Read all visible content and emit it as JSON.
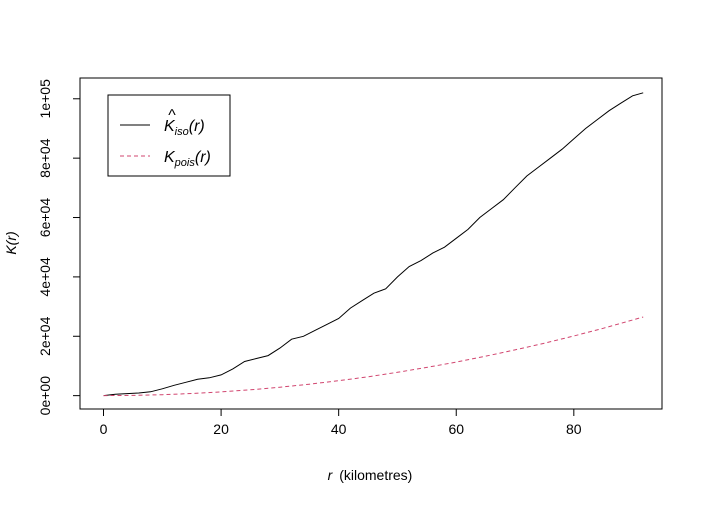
{
  "chart_data": {
    "type": "line",
    "xlabel_var": "r",
    "xlabel_unit": "(kilometres)",
    "ylabel": "K(r)",
    "xlim": [
      -4,
      95
    ],
    "ylim": [
      -4500,
      107000
    ],
    "x_ticks": [
      0,
      20,
      40,
      60,
      80
    ],
    "x_tick_labels": [
      "0",
      "20",
      "40",
      "60",
      "80"
    ],
    "y_ticks": [
      0,
      20000,
      40000,
      60000,
      80000,
      100000
    ],
    "y_tick_labels": [
      "0e+00",
      "2e+04",
      "4e+04",
      "6e+04",
      "8e+04",
      "1e+05"
    ],
    "grid": false,
    "legend_position": "top-left",
    "series": [
      {
        "name": "K̂iso(r)",
        "legend_main": "K",
        "legend_hat": "^",
        "legend_sub": "iso",
        "legend_arg": "(r)",
        "color": "#000000",
        "dash": "solid",
        "x": [
          0,
          2,
          4,
          6,
          8,
          10,
          12,
          14,
          16,
          18,
          20,
          22,
          24,
          26,
          28,
          30,
          32,
          34,
          36,
          38,
          40,
          42,
          44,
          46,
          48,
          50,
          52,
          54,
          56,
          58,
          60,
          62,
          64,
          66,
          68,
          70,
          72,
          74,
          76,
          78,
          80,
          82,
          84,
          86,
          88,
          90,
          91.8
        ],
        "y": [
          0,
          500,
          700,
          900,
          1300,
          2300,
          3500,
          4500,
          5500,
          6000,
          7000,
          9000,
          11500,
          12500,
          13500,
          16000,
          19000,
          20000,
          22000,
          24000,
          26000,
          29500,
          32000,
          34500,
          36000,
          40000,
          43500,
          45500,
          48000,
          50000,
          53000,
          56000,
          60000,
          63000,
          66000,
          70000,
          74000,
          77000,
          80000,
          83000,
          86500,
          90000,
          93000,
          96000,
          98500,
          101000,
          102000
        ]
      },
      {
        "name": "Kpois(r)",
        "legend_main": "K",
        "legend_hat": "",
        "legend_sub": "pois",
        "legend_arg": "(r)",
        "color": "#D1456F",
        "dash": "dashed",
        "x": [
          0,
          5,
          10,
          15,
          20,
          25,
          30,
          35,
          40,
          45,
          50,
          55,
          60,
          65,
          70,
          75,
          80,
          85,
          91.8
        ],
        "y": [
          0,
          78,
          314,
          707,
          1257,
          1963,
          2827,
          3848,
          5027,
          6362,
          7854,
          9503,
          11310,
          13273,
          15394,
          17671,
          20106,
          22698,
          26475
        ]
      }
    ]
  }
}
